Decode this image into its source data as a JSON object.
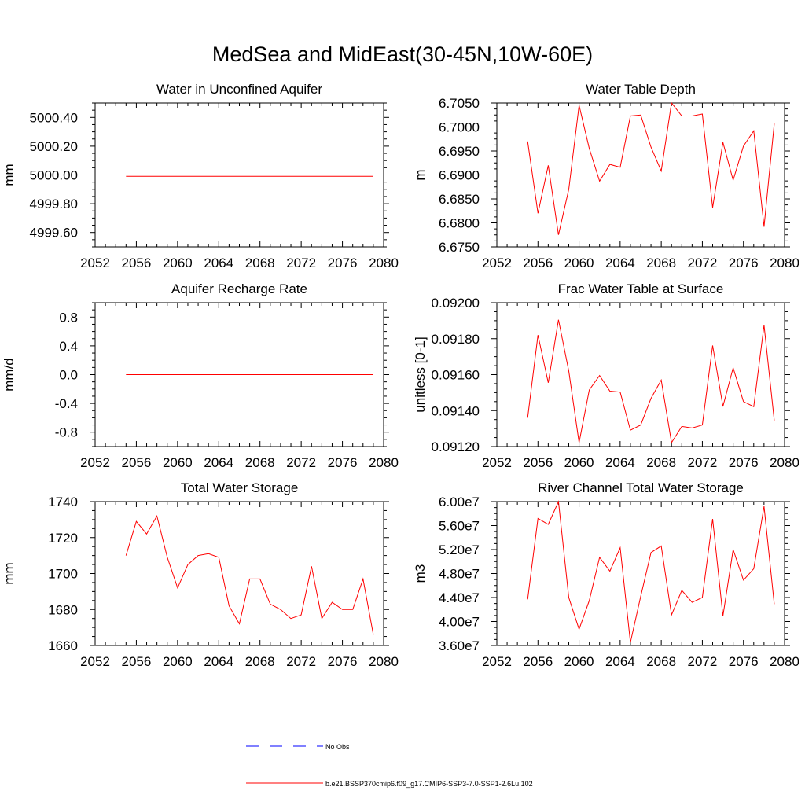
{
  "title": "MedSea and MidEast(30-45N,10W-60E)",
  "colors": {
    "series": "#ff0000",
    "obs": "#0000ff",
    "axis": "#000000"
  },
  "legend": {
    "obs_label": "No Obs",
    "series_label": "b.e21.BSSP370cmip6.f09_g17.CMIP6-SSP3-7.0-SSP1-2.6Lu.102"
  },
  "chart_data": [
    {
      "type": "line",
      "title": "Water in Unconfined Aquifer",
      "ylabel": "mm",
      "xlim": [
        2052,
        2080
      ],
      "ylim": [
        4999.5,
        5000.5
      ],
      "xticks": [
        "2052",
        "2056",
        "2060",
        "2064",
        "2068",
        "2072",
        "2076",
        "2080"
      ],
      "yticks": [
        {
          "v": 4999.6,
          "label": "4999.60"
        },
        {
          "v": 4999.8,
          "label": "4999.80"
        },
        {
          "v": 5000.0,
          "label": "5000.00"
        },
        {
          "v": 5000.2,
          "label": "5000.20"
        },
        {
          "v": 5000.4,
          "label": "5000.40"
        }
      ],
      "x": [
        2055,
        2056,
        2057,
        2058,
        2059,
        2060,
        2061,
        2062,
        2063,
        2064,
        2065,
        2066,
        2067,
        2068,
        2069,
        2070,
        2071,
        2072,
        2073,
        2074,
        2075,
        2076,
        2077,
        2078,
        2079
      ],
      "values": [
        4999.99,
        4999.99,
        4999.99,
        4999.99,
        4999.99,
        4999.99,
        4999.99,
        4999.99,
        4999.99,
        4999.99,
        4999.99,
        4999.99,
        4999.99,
        4999.99,
        4999.99,
        4999.99,
        4999.99,
        4999.99,
        4999.99,
        4999.99,
        4999.99,
        4999.99,
        4999.99,
        4999.99,
        4999.99
      ]
    },
    {
      "type": "line",
      "title": "Water Table Depth",
      "ylabel": "m",
      "xlim": [
        2052,
        2080
      ],
      "ylim": [
        6.675,
        6.705
      ],
      "xticks": [
        "2052",
        "2056",
        "2060",
        "2064",
        "2068",
        "2072",
        "2076",
        "2080"
      ],
      "yticks": [
        {
          "v": 6.675,
          "label": "6.6750"
        },
        {
          "v": 6.68,
          "label": "6.6800"
        },
        {
          "v": 6.685,
          "label": "6.6850"
        },
        {
          "v": 6.69,
          "label": "6.6900"
        },
        {
          "v": 6.695,
          "label": "6.6950"
        },
        {
          "v": 6.7,
          "label": "6.7000"
        },
        {
          "v": 6.705,
          "label": "6.7050"
        }
      ],
      "x": [
        2055,
        2056,
        2057,
        2058,
        2059,
        2060,
        2061,
        2062,
        2063,
        2064,
        2065,
        2066,
        2067,
        2068,
        2069,
        2070,
        2071,
        2072,
        2073,
        2074,
        2075,
        2076,
        2077,
        2078,
        2079
      ],
      "values": [
        6.697,
        6.682,
        6.692,
        6.6775,
        6.687,
        6.7045,
        6.6955,
        6.6887,
        6.6922,
        6.6916,
        6.7023,
        6.7025,
        6.6958,
        6.6908,
        6.705,
        6.7023,
        6.7023,
        6.7027,
        6.6832,
        6.6968,
        6.6889,
        6.696,
        6.6992,
        6.6792,
        6.7007
      ]
    },
    {
      "type": "line",
      "title": "Aquifer Recharge Rate",
      "ylabel": "mm/d",
      "xlim": [
        2052,
        2080
      ],
      "ylim": [
        -1.0,
        1.0
      ],
      "xticks": [
        "2052",
        "2056",
        "2060",
        "2064",
        "2068",
        "2072",
        "2076",
        "2080"
      ],
      "yticks": [
        {
          "v": -0.8,
          "label": "-0.8"
        },
        {
          "v": -0.4,
          "label": "-0.4"
        },
        {
          "v": 0.0,
          "label": "0.0"
        },
        {
          "v": 0.4,
          "label": "0.4"
        },
        {
          "v": 0.8,
          "label": "0.8"
        }
      ],
      "x": [
        2055,
        2056,
        2057,
        2058,
        2059,
        2060,
        2061,
        2062,
        2063,
        2064,
        2065,
        2066,
        2067,
        2068,
        2069,
        2070,
        2071,
        2072,
        2073,
        2074,
        2075,
        2076,
        2077,
        2078,
        2079
      ],
      "values": [
        0,
        0,
        0,
        0,
        0,
        0,
        0,
        0,
        0,
        0,
        0,
        0,
        0,
        0,
        0,
        0,
        0,
        0,
        0,
        0,
        0,
        0,
        0,
        0,
        0
      ]
    },
    {
      "type": "line",
      "title": "Frac Water Table at Surface",
      "ylabel": "unitless [0-1]",
      "xlim": [
        2052,
        2080
      ],
      "ylim": [
        0.0912,
        0.092
      ],
      "xticks": [
        "2052",
        "2056",
        "2060",
        "2064",
        "2068",
        "2072",
        "2076",
        "2080"
      ],
      "yticks": [
        {
          "v": 0.0912,
          "label": "0.09120"
        },
        {
          "v": 0.0914,
          "label": "0.09140"
        },
        {
          "v": 0.0916,
          "label": "0.09160"
        },
        {
          "v": 0.0918,
          "label": "0.09180"
        },
        {
          "v": 0.092,
          "label": "0.09200"
        }
      ],
      "x": [
        2055,
        2056,
        2057,
        2058,
        2059,
        2060,
        2061,
        2062,
        2063,
        2064,
        2065,
        2066,
        2067,
        2068,
        2069,
        2070,
        2071,
        2072,
        2073,
        2074,
        2075,
        2076,
        2077,
        2078,
        2079
      ],
      "values": [
        0.09136,
        0.09182,
        0.091555,
        0.091905,
        0.09162,
        0.091222,
        0.091515,
        0.091595,
        0.091508,
        0.091503,
        0.091291,
        0.09132,
        0.091468,
        0.09157,
        0.091222,
        0.091312,
        0.091303,
        0.09132,
        0.091762,
        0.091423,
        0.091638,
        0.09145,
        0.091422,
        0.091875,
        0.091345
      ]
    },
    {
      "type": "line",
      "title": "Total Water Storage",
      "ylabel": "mm",
      "xlim": [
        2052,
        2080
      ],
      "ylim": [
        1660,
        1740
      ],
      "xticks": [
        "2052",
        "2056",
        "2060",
        "2064",
        "2068",
        "2072",
        "2076",
        "2080"
      ],
      "yticks": [
        {
          "v": 1660,
          "label": "1660"
        },
        {
          "v": 1680,
          "label": "1680"
        },
        {
          "v": 1700,
          "label": "1700"
        },
        {
          "v": 1720,
          "label": "1720"
        },
        {
          "v": 1740,
          "label": "1740"
        }
      ],
      "x": [
        2055,
        2056,
        2057,
        2058,
        2059,
        2060,
        2061,
        2062,
        2063,
        2064,
        2065,
        2066,
        2067,
        2068,
        2069,
        2070,
        2071,
        2072,
        2073,
        2074,
        2075,
        2076,
        2077,
        2078,
        2079
      ],
      "values": [
        1710,
        1729,
        1722,
        1732,
        1709,
        1692,
        1705,
        1710,
        1711,
        1709,
        1682,
        1672,
        1697,
        1697,
        1683,
        1680,
        1675,
        1677,
        1704,
        1675,
        1684,
        1680,
        1680,
        1697,
        1666
      ]
    },
    {
      "type": "line",
      "title": "River Channel Total Water Storage",
      "ylabel": "m3",
      "xlim": [
        2052,
        2080
      ],
      "ylim": [
        36000000,
        60000000
      ],
      "xticks": [
        "2052",
        "2056",
        "2060",
        "2064",
        "2068",
        "2072",
        "2076",
        "2080"
      ],
      "yticks": [
        {
          "v": 36000000,
          "label": "3.60e7"
        },
        {
          "v": 40000000,
          "label": "4.00e7"
        },
        {
          "v": 44000000,
          "label": "4.40e7"
        },
        {
          "v": 48000000,
          "label": "4.80e7"
        },
        {
          "v": 52000000,
          "label": "5.20e7"
        },
        {
          "v": 56000000,
          "label": "5.60e7"
        },
        {
          "v": 60000000,
          "label": "6.00e7"
        }
      ],
      "x": [
        2055,
        2056,
        2057,
        2058,
        2059,
        2060,
        2061,
        2062,
        2063,
        2064,
        2065,
        2066,
        2067,
        2068,
        2069,
        2070,
        2071,
        2072,
        2073,
        2074,
        2075,
        2076,
        2077,
        2078,
        2079
      ],
      "values": [
        43700000,
        57200000,
        56200000,
        60000000,
        44000000,
        38700000,
        43500000,
        50700000,
        48400000,
        52300000,
        36500000,
        44200000,
        51500000,
        52600000,
        41100000,
        45200000,
        43200000,
        44000000,
        57100000,
        40900000,
        52000000,
        46900000,
        48800000,
        59200000,
        42900000
      ]
    }
  ]
}
